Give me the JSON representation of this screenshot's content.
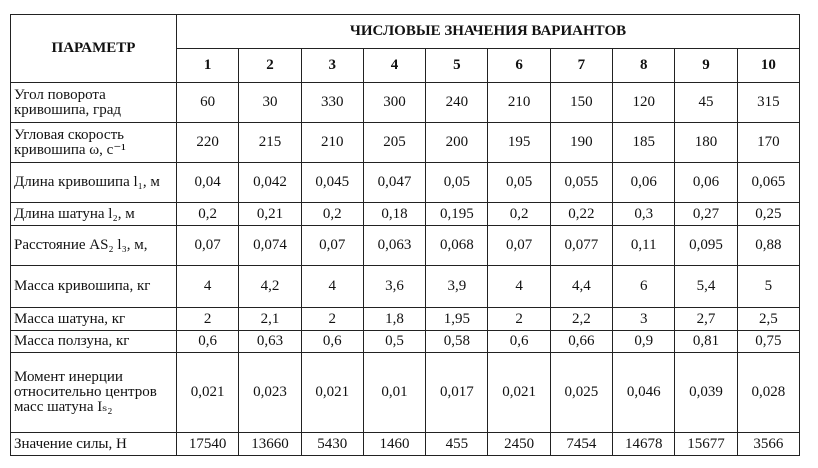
{
  "table": {
    "header": {
      "param": "ПАРАМЕТР",
      "group": "ЧИСЛОВЫЕ ЗНАЧЕНИЯ ВАРИАНТОВ",
      "variants": [
        "1",
        "2",
        "3",
        "4",
        "5",
        "6",
        "7",
        "8",
        "9",
        "10"
      ]
    },
    "rows": [
      {
        "label": "Угол поворота кривошипа, град",
        "values": [
          "60",
          "30",
          "330",
          "300",
          "240",
          "210",
          "150",
          "120",
          "45",
          "315"
        ]
      },
      {
        "label": "Угловая скорость кривошипа ω, с⁻¹",
        "values": [
          "220",
          "215",
          "210",
          "205",
          "200",
          "195",
          "190",
          "185",
          "180",
          "170"
        ]
      },
      {
        "label": "Длина кривошипа l₁, м",
        "values": [
          "0,04",
          "0,042",
          "0,045",
          "0,047",
          "0,05",
          "0,05",
          "0,055",
          "0,06",
          "0,06",
          "0,065"
        ]
      },
      {
        "label": "Длина шатуна l₂, м",
        "values": [
          "0,2",
          "0,21",
          "0,2",
          "0,18",
          "0,195",
          "0,2",
          "0,22",
          "0,3",
          "0,27",
          "0,25"
        ]
      },
      {
        "label": "Расстояние AS₂ l₃, м,",
        "values": [
          "0,07",
          "0,074",
          "0,07",
          "0,063",
          "0,068",
          "0,07",
          "0,077",
          "0,11",
          "0,095",
          "0,88"
        ]
      },
      {
        "label": "Масса кривошипа, кг",
        "values": [
          "4",
          "4,2",
          "4",
          "3,6",
          "3,9",
          "4",
          "4,4",
          "6",
          "5,4",
          "5"
        ]
      },
      {
        "label": "Масса шатуна, кг",
        "values": [
          "2",
          "2,1",
          "2",
          "1,8",
          "1,95",
          "2",
          "2,2",
          "3",
          "2,7",
          "2,5"
        ]
      },
      {
        "label": "Масса ползуна, кг",
        "values": [
          "0,6",
          "0,63",
          "0,6",
          "0,5",
          "0,58",
          "0,6",
          "0,66",
          "0,9",
          "0,81",
          "0,75"
        ]
      },
      {
        "label": "Момент инерции относительно центров масс шатуна Iₛ₂",
        "values": [
          "0,021",
          "0,023",
          "0,021",
          "0,01",
          "0,017",
          "0,021",
          "0,025",
          "0,046",
          "0,039",
          "0,028"
        ]
      },
      {
        "label": "Значение силы, Н",
        "values": [
          "17540",
          "13660",
          "5430",
          "1460",
          "455",
          "2450",
          "7454",
          "14678",
          "15677",
          "3566"
        ]
      }
    ]
  }
}
